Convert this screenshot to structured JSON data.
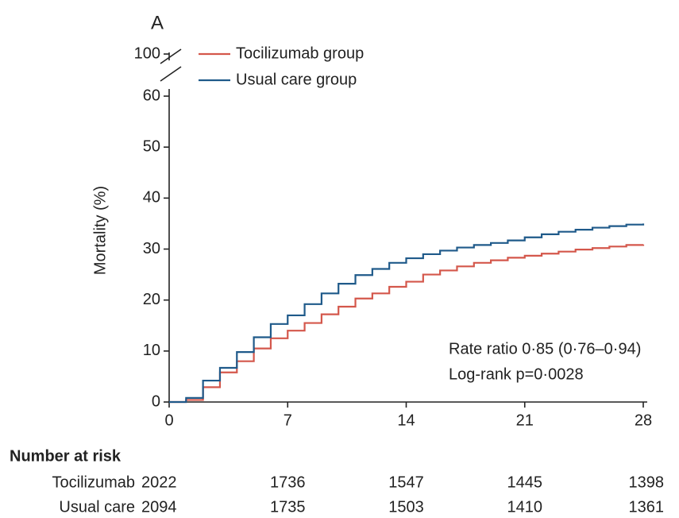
{
  "chart_data": {
    "type": "step",
    "panel_label": "A",
    "x": [
      0,
      1,
      2,
      3,
      4,
      5,
      6,
      7,
      8,
      9,
      10,
      11,
      12,
      13,
      14,
      15,
      16,
      17,
      18,
      19,
      20,
      21,
      22,
      23,
      24,
      25,
      26,
      27,
      28
    ],
    "series": [
      {
        "name": "Tocilizumab group",
        "color": "#d4574b",
        "values": [
          0,
          0.4,
          2.9,
          5.8,
          8,
          10.5,
          12.5,
          14,
          15.5,
          17.2,
          18.7,
          20.3,
          21.3,
          22.6,
          23.6,
          25,
          25.8,
          26.6,
          27.3,
          27.8,
          28.3,
          28.7,
          29.1,
          29.5,
          29.9,
          30.2,
          30.5,
          30.8,
          30.9
        ]
      },
      {
        "name": "Usual care group",
        "color": "#1f5a8a",
        "values": [
          0,
          0.8,
          4.2,
          6.7,
          9.8,
          12.7,
          15.3,
          17,
          19.2,
          21.3,
          23.2,
          24.9,
          26.1,
          27.3,
          28.2,
          29,
          29.7,
          30.3,
          30.8,
          31.2,
          31.7,
          32.3,
          32.9,
          33.4,
          33.8,
          34.2,
          34.5,
          34.8,
          35
        ]
      }
    ],
    "xlim": [
      0,
      28
    ],
    "xticks": [
      0,
      7,
      14,
      21,
      28
    ],
    "ylim": [
      0,
      100
    ],
    "y_break": [
      60,
      100
    ],
    "yticks": [
      0,
      10,
      20,
      30,
      40,
      50,
      60,
      100
    ],
    "y_label": "Mortality (%)",
    "annotations": [
      "Rate ratio 0·85 (0·76–0·94)",
      "Log-rank p=0·0028"
    ],
    "risk_table": {
      "title": "Number at risk",
      "rows": [
        {
          "name": "Tocilizumab",
          "values": [
            2022,
            1736,
            1547,
            1445,
            1398
          ]
        },
        {
          "name": "Usual care",
          "values": [
            2094,
            1735,
            1503,
            1410,
            1361
          ]
        }
      ]
    }
  }
}
